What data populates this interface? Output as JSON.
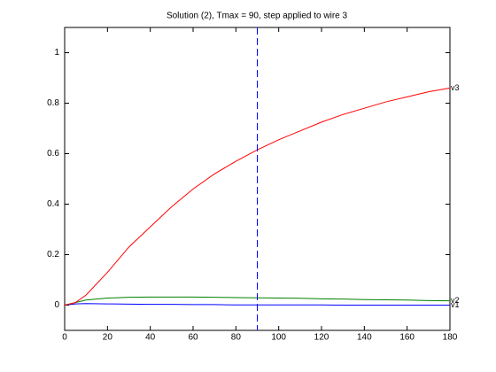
{
  "chart_data": {
    "type": "line",
    "title": "Solution (2), Tmax = 90, step applied to wire 3",
    "x": [
      0,
      5,
      10,
      20,
      30,
      40,
      50,
      60,
      70,
      80,
      90,
      100,
      110,
      120,
      130,
      140,
      150,
      160,
      170,
      180
    ],
    "series": [
      {
        "name": "v1",
        "color": "#0000ff",
        "values": [
          0,
          0.005,
          0.006,
          0.005,
          0.004,
          0.003,
          0.003,
          0.002,
          0.002,
          0.001,
          0.001,
          0.001,
          0.001,
          0.001,
          0,
          0,
          0,
          0,
          0,
          0
        ]
      },
      {
        "name": "v2",
        "color": "#008000",
        "values": [
          0,
          0.01,
          0.02,
          0.028,
          0.031,
          0.032,
          0.032,
          0.032,
          0.031,
          0.03,
          0.029,
          0.028,
          0.027,
          0.025,
          0.024,
          0.022,
          0.021,
          0.02,
          0.018,
          0.017
        ]
      },
      {
        "name": "v3",
        "color": "#ff0000",
        "values": [
          0,
          0.01,
          0.04,
          0.13,
          0.23,
          0.31,
          0.39,
          0.46,
          0.52,
          0.57,
          0.615,
          0.655,
          0.69,
          0.725,
          0.755,
          0.78,
          0.805,
          0.825,
          0.845,
          0.86
        ]
      }
    ],
    "vline": {
      "x": 90,
      "color": "#0000ff",
      "style": "dashed"
    },
    "xlim": [
      0,
      180
    ],
    "xticks": [
      0,
      20,
      40,
      60,
      80,
      100,
      120,
      140,
      160,
      180
    ],
    "ylim": [
      -0.1,
      1.1
    ],
    "yticks": [
      0,
      0.2,
      0.4,
      0.6,
      0.8,
      1
    ],
    "grid": false
  }
}
